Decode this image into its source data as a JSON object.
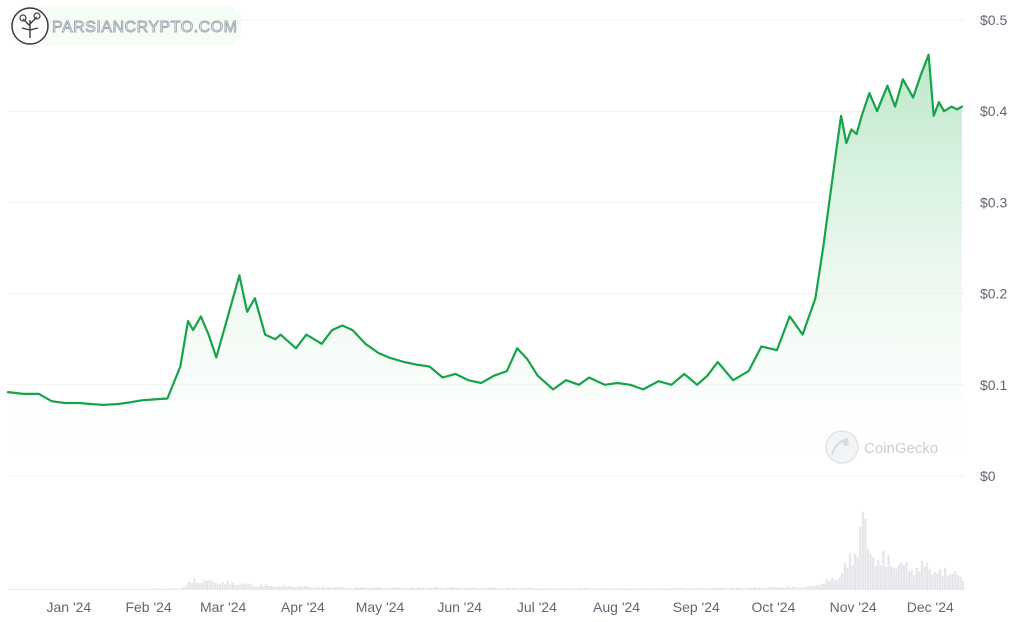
{
  "watermark_logo": {
    "text": "PARSIANCRYPTO.COM",
    "icon": "brain-tree-logo-icon"
  },
  "watermark_brand": {
    "text": "CoinGecko",
    "icon": "gecko-logo-icon"
  },
  "colors": {
    "line": "#16a34a",
    "fill_top": "#bfe9cc",
    "volume": "#e4e6ea",
    "grid": "#eef0f3"
  },
  "chart_data": {
    "type": "area",
    "title": "",
    "xlabel": "",
    "ylabel": "",
    "yticks": [
      "$0",
      "$0.1",
      "$0.2",
      "$0.3",
      "$0.4",
      "$0.5"
    ],
    "ylim": [
      0,
      0.5
    ],
    "xticks": [
      "Jan '24",
      "Feb '24",
      "Mar '24",
      "Apr '24",
      "May '24",
      "Jun '24",
      "Jul '24",
      "Aug '24",
      "Sep '24",
      "Oct '24",
      "Nov '24",
      "Dec '24"
    ],
    "grid": true,
    "x_unit": "day of 2024",
    "price_series": {
      "x": [
        -12,
        -6,
        0,
        5,
        10,
        16,
        20,
        25,
        31,
        36,
        40,
        45,
        50,
        55,
        58,
        60,
        63,
        66,
        69,
        72,
        75,
        78,
        81,
        84,
        88,
        92,
        94,
        96,
        100,
        104,
        107,
        110,
        114,
        118,
        122,
        127,
        132,
        136,
        142,
        147,
        152,
        157,
        162,
        167,
        172,
        177,
        182,
        186,
        190,
        194,
        200,
        205,
        210,
        214,
        220,
        225,
        230,
        235,
        241,
        246,
        251,
        256,
        260,
        264,
        270,
        276,
        281,
        287,
        292,
        297,
        302,
        305,
        310,
        312,
        314,
        316,
        318,
        320,
        323,
        326,
        330,
        333,
        336,
        340,
        343,
        346,
        348,
        350,
        352,
        355,
        357,
        359
      ],
      "y": [
        0.092,
        0.09,
        0.09,
        0.082,
        0.08,
        0.08,
        0.079,
        0.078,
        0.079,
        0.081,
        0.083,
        0.084,
        0.085,
        0.12,
        0.17,
        0.16,
        0.175,
        0.155,
        0.13,
        0.16,
        0.19,
        0.22,
        0.18,
        0.195,
        0.155,
        0.15,
        0.155,
        0.15,
        0.14,
        0.155,
        0.15,
        0.145,
        0.16,
        0.165,
        0.16,
        0.145,
        0.135,
        0.13,
        0.125,
        0.122,
        0.12,
        0.108,
        0.112,
        0.105,
        0.102,
        0.11,
        0.115,
        0.14,
        0.128,
        0.11,
        0.095,
        0.105,
        0.1,
        0.108,
        0.1,
        0.102,
        0.1,
        0.095,
        0.104,
        0.1,
        0.112,
        0.1,
        0.11,
        0.125,
        0.105,
        0.115,
        0.142,
        0.138,
        0.175,
        0.155,
        0.195,
        0.25,
        0.355,
        0.395,
        0.365,
        0.38,
        0.375,
        0.395,
        0.42,
        0.4,
        0.428,
        0.405,
        0.435,
        0.415,
        0.44,
        0.462,
        0.395,
        0.41,
        0.4,
        0.405,
        0.402,
        0.405
      ]
    },
    "volume_series": {
      "x": [
        -12,
        0,
        30,
        55,
        60,
        75,
        90,
        120,
        160,
        200,
        240,
        280,
        300,
        310,
        315,
        318,
        320,
        322,
        325,
        330,
        335,
        340,
        345,
        350,
        355,
        359
      ],
      "y": [
        0.01,
        0.01,
        0.01,
        0.02,
        0.12,
        0.08,
        0.05,
        0.03,
        0.03,
        0.02,
        0.02,
        0.03,
        0.04,
        0.15,
        0.35,
        0.55,
        1.0,
        0.45,
        0.4,
        0.35,
        0.3,
        0.25,
        0.3,
        0.2,
        0.25,
        0.1
      ]
    }
  }
}
